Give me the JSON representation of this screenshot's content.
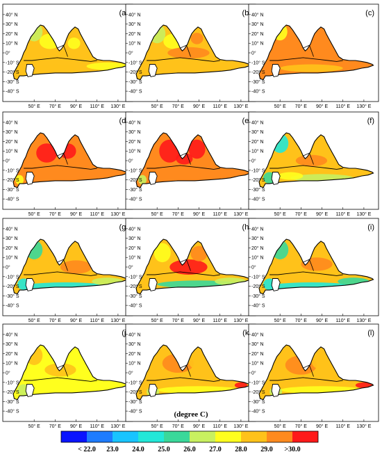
{
  "figure": {
    "unit_label": "(degree C)",
    "lat_ticks": [
      "40° N",
      "30° N",
      "20° N",
      "10° N",
      "0°",
      "-10° S",
      "-20° S",
      "-30° S",
      "-40° S"
    ],
    "lon_ticks": [
      "50° E",
      "70° E",
      "90° E",
      "110° E",
      "130° E"
    ],
    "colorbar": {
      "labels": [
        "< 22.0",
        "23.0",
        "24.0",
        "25.0",
        "26.0",
        "27.0",
        "28.0",
        "29.0",
        ">30.0"
      ],
      "colors": [
        "#0a14ff",
        "#1e7cff",
        "#19c4ff",
        "#22e8d8",
        "#3ad89a",
        "#c8f060",
        "#ffff1e",
        "#ffc21a",
        "#ff8a1e",
        "#ff1a1a"
      ]
    },
    "panels": [
      {
        "label": "(a)",
        "pattern": "a"
      },
      {
        "label": "(b)",
        "pattern": "b"
      },
      {
        "label": "(c)",
        "pattern": "c"
      },
      {
        "label": "(d)",
        "pattern": "d"
      },
      {
        "label": "(e)",
        "pattern": "e"
      },
      {
        "label": "(f)",
        "pattern": "f"
      },
      {
        "label": "(g)",
        "pattern": "g"
      },
      {
        "label": "(h)",
        "pattern": "h"
      },
      {
        "label": "(i)",
        "pattern": "i"
      },
      {
        "label": "(j)",
        "pattern": "j"
      },
      {
        "label": "(k)",
        "pattern": "k"
      },
      {
        "label": "(l)",
        "pattern": "l"
      }
    ]
  }
}
